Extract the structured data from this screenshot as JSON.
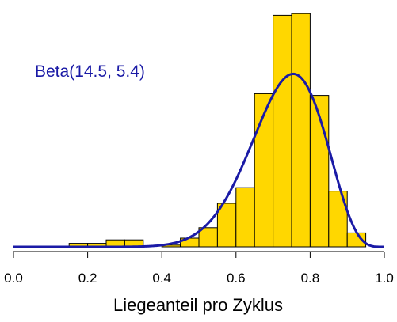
{
  "chart_data": {
    "type": "bar",
    "title": "",
    "xlabel": "Liegeanteil pro Zyklus",
    "ylabel": "",
    "xlim": [
      0.0,
      1.0
    ],
    "x_ticks": [
      "0.0",
      "0.2",
      "0.4",
      "0.6",
      "0.8",
      "1.0"
    ],
    "bin_width": 0.05,
    "bins": [
      {
        "start": 0.15,
        "value": 0.2
      },
      {
        "start": 0.2,
        "value": 0.2
      },
      {
        "start": 0.25,
        "value": 0.4
      },
      {
        "start": 0.3,
        "value": 0.4
      },
      {
        "start": 0.35,
        "value": 0.0
      },
      {
        "start": 0.4,
        "value": 0.1
      },
      {
        "start": 0.45,
        "value": 0.5
      },
      {
        "start": 0.5,
        "value": 1.1
      },
      {
        "start": 0.55,
        "value": 2.5
      },
      {
        "start": 0.6,
        "value": 3.4
      },
      {
        "start": 0.65,
        "value": 8.8
      },
      {
        "start": 0.7,
        "value": 13.3
      },
      {
        "start": 0.75,
        "value": 13.4
      },
      {
        "start": 0.8,
        "value": 8.7
      },
      {
        "start": 0.85,
        "value": 3.2
      },
      {
        "start": 0.9,
        "value": 0.8
      }
    ],
    "density_curve": {
      "name": "Beta(14.5, 5.4)",
      "alpha": 14.5,
      "beta": 5.4,
      "color": "#1a1aa6"
    },
    "grid": false
  },
  "colors": {
    "bar_fill": "#ffd700",
    "bar_stroke": "#000000",
    "curve": "#1a1aa6",
    "axis": "#000000"
  },
  "annotation": {
    "text": "Beta(14.5, 5.4)"
  }
}
